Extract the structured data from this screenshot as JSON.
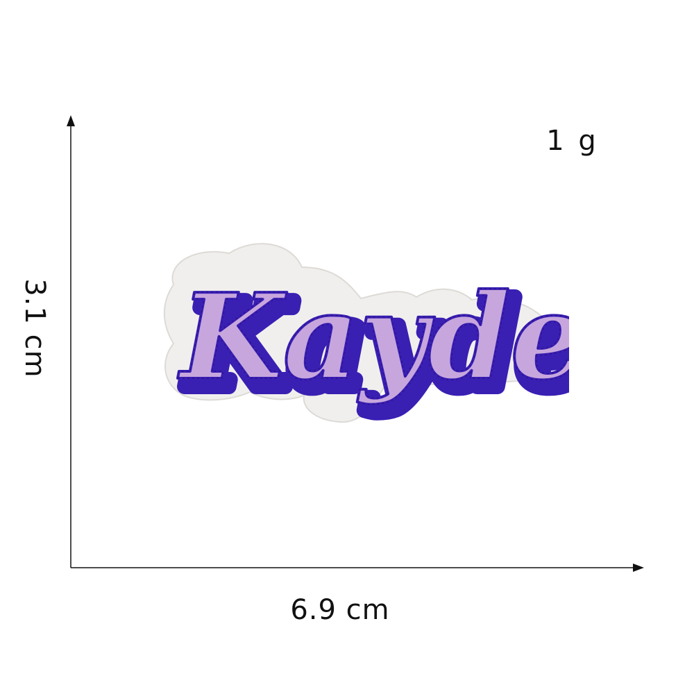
{
  "labels": {
    "weight": "1 g",
    "width": "6.9 cm",
    "height": "3.1 cm"
  },
  "patch": {
    "text": "Kaydee",
    "colors": {
      "backing": "#f1efed",
      "fill": "#c7a6dd",
      "outline": "#3a1fb3",
      "stitch": "#2a1490"
    }
  }
}
